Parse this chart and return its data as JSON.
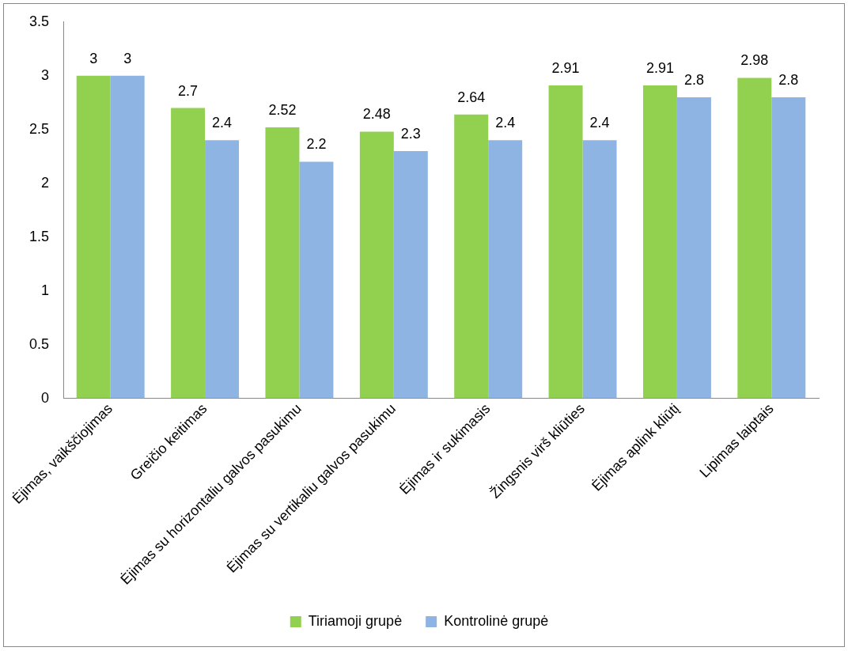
{
  "chart_data": {
    "type": "bar",
    "categories": [
      "Ėjimas, vaikščiojimas",
      "Greičio keitimas",
      "Ėjimas su horizontaliu galvos pasukimu",
      "Ėjimas su vertikaliu galvos pasukimu",
      "Ėjimas ir sukimasis",
      "Žingsnis virš kliūties",
      "Ėjimas aplink kliūtį",
      "Lipimas laiptais"
    ],
    "series": [
      {
        "name": "Tiriamoji grupė",
        "color": "#92d050",
        "values": [
          3,
          2.7,
          2.52,
          2.48,
          2.64,
          2.91,
          2.91,
          2.98
        ]
      },
      {
        "name": "Kontrolinė grupė",
        "color": "#8db4e2",
        "values": [
          3,
          2.4,
          2.2,
          2.3,
          2.4,
          2.4,
          2.8,
          2.8
        ]
      }
    ],
    "ylim": [
      0,
      3.5
    ],
    "yticks": [
      0,
      0.5,
      1,
      1.5,
      2,
      2.5,
      3,
      3.5
    ],
    "legend": "bottom",
    "data_labels": true
  }
}
